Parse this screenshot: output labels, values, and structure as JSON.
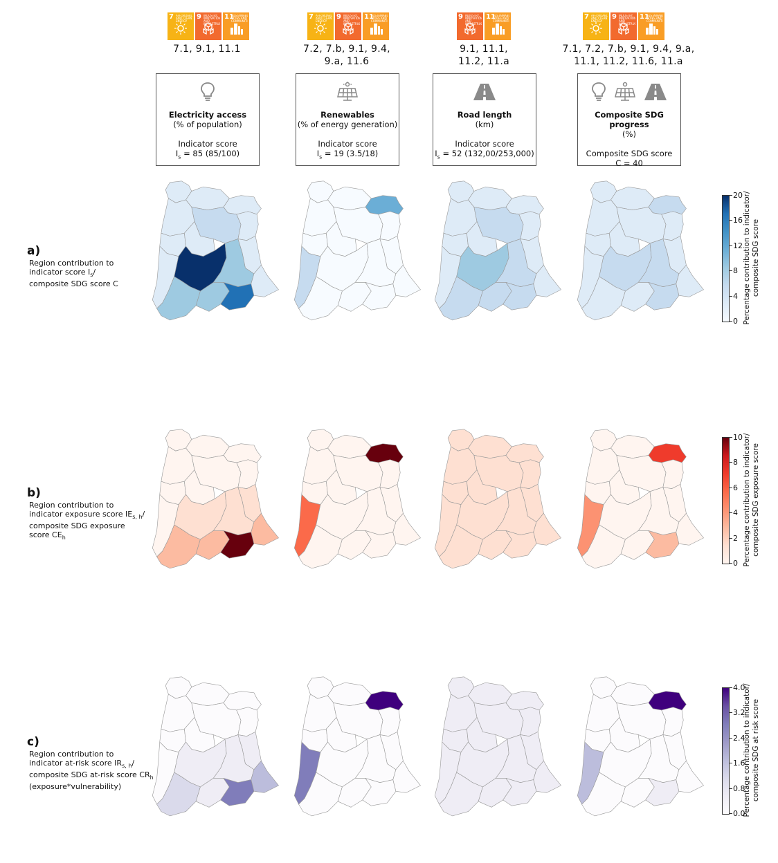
{
  "colors": {
    "sdg7": "#f7b315",
    "sdg9": "#f26a2e",
    "sdg11": "#f99d25",
    "blues": [
      "#f7fbff",
      "#deebf7",
      "#c6dbef",
      "#9ecae1",
      "#6baed6",
      "#4292c6",
      "#2171b5",
      "#08306b"
    ],
    "reds": [
      "#fff5f0",
      "#fee0d2",
      "#fcbba1",
      "#fc9272",
      "#fb6a4a",
      "#ef3b2c",
      "#cb181d",
      "#67000d"
    ],
    "purples": [
      "#fcfbfd",
      "#efedf5",
      "#dadaeb",
      "#bcbddc",
      "#9e9ac8",
      "#807dba",
      "#6a51a3",
      "#3f007d"
    ]
  },
  "sdg_badges": {
    "g7": {
      "num": "7",
      "title": "AFFORDABLE AND CLEAN ENERGY"
    },
    "g9": {
      "num": "9",
      "title": "INDUSTRY, INNOVATION AND INFRASTRUCTURE"
    },
    "g11": {
      "num": "11",
      "title": "SUSTAINABLE CITIES AND COMMUNITIES"
    }
  },
  "columns": [
    {
      "targets_line1": "7.1, 9.1, 11.1",
      "targets_line2": "",
      "title": "Electricity access",
      "subtitle": "(% of population)",
      "score_label": "Indicator score",
      "score_prefix": "I",
      "score_sub": "s",
      "score_value": " = 85 (85/100)",
      "icons": [
        "lightbulb-icon"
      ]
    },
    {
      "targets_line1": "7.2, 7.b, 9.1, 9.4,",
      "targets_line2": "9.a, 11.6",
      "title": "Renewables",
      "subtitle": "(% of energy generation)",
      "score_label": "Indicator score",
      "score_prefix": "I",
      "score_sub": "s",
      "score_value": " = 19 (3.5/18)",
      "icons": [
        "solar-panel-icon"
      ]
    },
    {
      "targets_line1": "9.1, 11.1,",
      "targets_line2": "11.2, 11.a",
      "title": "Road length",
      "subtitle": "(km)",
      "score_label": "Indicator score",
      "score_prefix": "I",
      "score_sub": "s",
      "score_value": " = 52 (132,00/253,000)",
      "icons": [
        "road-icon"
      ]
    },
    {
      "targets_line1": "7.1, 7.2, 7.b, 9.1, 9.4, 9.a,",
      "targets_line2": "11.1, 11.2, 11.6, 11.a",
      "title": "Composite SDG progress",
      "subtitle": "(%)",
      "score_label": "Composite SDG score",
      "score_prefix": "",
      "score_sub": "",
      "score_value": "C = 40",
      "icons": [
        "lightbulb-icon",
        "solar-panel-icon",
        "road-icon"
      ]
    }
  ],
  "rows": [
    {
      "letter": "a)",
      "l1": "Region contribution to",
      "l2a": "indicator score I",
      "l2sub": "s",
      "l2b": "/",
      "l3": "composite SDG score C",
      "l4": "",
      "palette": "blues",
      "colorbar": {
        "label_line1": "Percentage contribution to indicator/",
        "label_line2": "composite SDG score",
        "ticks": [
          "20",
          "16",
          "12",
          "8",
          "4",
          "0"
        ],
        "range": [
          0,
          20
        ]
      },
      "maps": [
        {
          "r1": 1,
          "r2": 1,
          "r3": 1,
          "r4": 1,
          "r5": 2,
          "r6": 1,
          "r7": 1,
          "r8": 1,
          "r9": 1,
          "r10": 1,
          "r11": 7,
          "r12": 3,
          "r13": 3,
          "r14": 3,
          "r15": 6,
          "r16": 1
        },
        {
          "r1": 0,
          "r2": 0,
          "r3": 4,
          "r4": 0,
          "r5": 0,
          "r6": 0,
          "r7": 0,
          "r8": 0,
          "r9": 0,
          "r10": 2,
          "r11": 0,
          "r12": 0,
          "r13": 0,
          "r14": 0,
          "r15": 0,
          "r16": 0
        },
        {
          "r1": 1,
          "r2": 1,
          "r3": 1,
          "r4": 1,
          "r5": 2,
          "r6": 1,
          "r7": 1,
          "r8": 1,
          "r9": 1,
          "r10": 1,
          "r11": 3,
          "r12": 2,
          "r13": 2,
          "r14": 2,
          "r15": 2,
          "r16": 1
        },
        {
          "r1": 1,
          "r2": 1,
          "r3": 2,
          "r4": 1,
          "r5": 1,
          "r6": 1,
          "r7": 1,
          "r8": 1,
          "r9": 1,
          "r10": 1,
          "r11": 2,
          "r12": 2,
          "r13": 1,
          "r14": 1,
          "r15": 2,
          "r16": 1
        }
      ]
    },
    {
      "letter": "b)",
      "l1": "Region contribution to",
      "l2a": "indicator exposure score IE",
      "l2sub": "s, h",
      "l2b": "/",
      "l3": "composite SDG exposure",
      "l4": "score CE",
      "l4sub": "h",
      "palette": "reds",
      "colorbar": {
        "label_line1": "Percentage contribution to indicator/",
        "label_line2": "composite SDG exposure score",
        "ticks": [
          "10",
          "8",
          "6",
          "4",
          "2",
          "0"
        ],
        "range": [
          0,
          10
        ]
      },
      "maps": [
        {
          "r1": 0,
          "r2": 0,
          "r3": 0,
          "r4": 0,
          "r5": 0,
          "r6": 0,
          "r7": 0,
          "r8": 0,
          "r9": 1,
          "r10": 0,
          "r11": 1,
          "r12": 1,
          "r13": 2,
          "r14": 2,
          "r15": 7,
          "r16": 2
        },
        {
          "r1": 0,
          "r2": 0,
          "r3": 7,
          "r4": 0,
          "r5": 0,
          "r6": 0,
          "r7": 0,
          "r8": 0,
          "r9": 0,
          "r10": 4,
          "r11": 0,
          "r12": 0,
          "r13": 0,
          "r14": 0,
          "r15": 0,
          "r16": 0
        },
        {
          "r1": 1,
          "r2": 1,
          "r3": 1,
          "r4": 1,
          "r5": 1,
          "r6": 1,
          "r7": 1,
          "r8": 1,
          "r9": 1,
          "r10": 1,
          "r11": 1,
          "r12": 1,
          "r13": 1,
          "r14": 1,
          "r15": 1,
          "r16": 1
        },
        {
          "r1": 0,
          "r2": 0,
          "r3": 5,
          "r4": 0,
          "r5": 0,
          "r6": 0,
          "r7": 0,
          "r8": 0,
          "r9": 0,
          "r10": 3,
          "r11": 0,
          "r12": 0,
          "r13": 0,
          "r14": 0,
          "r15": 2,
          "r16": 0
        }
      ]
    },
    {
      "letter": "c)",
      "l1": "Region contribution to",
      "l2a": "indicator at-risk score IR",
      "l2sub": "s, h",
      "l2b": "/",
      "l3": "composite SDG at-risk score CR",
      "l3sub": "h",
      "l4": "(exposure*vulnerability)",
      "palette": "purples",
      "colorbar": {
        "label_line1": "Percentage contribution to indicator/",
        "label_line2": "composite SDG at risk score",
        "ticks": [
          "4.0",
          "3.2",
          "2.4",
          "1.6",
          "0.8",
          "0.0"
        ],
        "range": [
          0,
          4
        ]
      },
      "maps": [
        {
          "r1": 0,
          "r2": 0,
          "r3": 0,
          "r4": 0,
          "r5": 0,
          "r6": 0,
          "r7": 0,
          "r8": 0,
          "r9": 1,
          "r10": 0,
          "r11": 1,
          "r12": 1,
          "r13": 2,
          "r14": 1,
          "r15": 5,
          "r16": 3
        },
        {
          "r1": 0,
          "r2": 0,
          "r3": 7,
          "r4": 0,
          "r5": 0,
          "r6": 0,
          "r7": 0,
          "r8": 0,
          "r9": 0,
          "r10": 5,
          "r11": 0,
          "r12": 0,
          "r13": 0,
          "r14": 0,
          "r15": 0,
          "r16": 0
        },
        {
          "r1": 1,
          "r2": 1,
          "r3": 1,
          "r4": 1,
          "r5": 1,
          "r6": 1,
          "r7": 1,
          "r8": 1,
          "r9": 1,
          "r10": 1,
          "r11": 1,
          "r12": 1,
          "r13": 1,
          "r14": 1,
          "r15": 1,
          "r16": 1
        },
        {
          "r1": 0,
          "r2": 0,
          "r3": 7,
          "r4": 0,
          "r5": 0,
          "r6": 0,
          "r7": 0,
          "r8": 0,
          "r9": 0,
          "r10": 3,
          "r11": 0,
          "r12": 0,
          "r13": 0,
          "r14": 0,
          "r15": 1,
          "r16": 0
        }
      ]
    }
  ]
}
